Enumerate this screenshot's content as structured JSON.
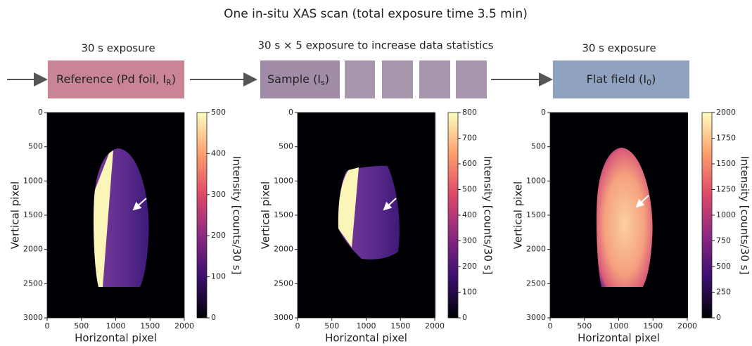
{
  "title": "One in-situ XAS scan (total exposure time 3.5 min)",
  "stages": [
    {
      "caption": "30 s exposure",
      "label": {
        "text": "Reference (Pd foil, I",
        "sub": "R",
        "tail": ")"
      }
    },
    {
      "caption": "30 s × 5 exposure to increase data statistics",
      "label": {
        "text": "Sample (I",
        "sub": "s",
        "tail": ")"
      }
    },
    {
      "caption": "30 s exposure",
      "label": {
        "text": "Flat field (I",
        "sub": "0",
        "tail": ")"
      }
    }
  ],
  "panels": [
    {
      "xlabel": "Horizontal pixel",
      "ylabel": "Vertical pixel",
      "xlim": [
        0,
        2000
      ],
      "xticks": [
        0,
        500,
        1000,
        1500,
        2000
      ],
      "ylim": [
        0,
        3000
      ],
      "yticks": [
        0,
        500,
        1000,
        1500,
        2000,
        2500,
        3000
      ],
      "colorbar": {
        "label": "Intensity [counts/30 s]",
        "lim": [
          0,
          500
        ],
        "ticks": [
          0,
          100,
          200,
          300,
          400,
          500
        ]
      }
    },
    {
      "xlabel": "Horizontal pixel",
      "ylabel": "Vertical pixel",
      "xlim": [
        0,
        2000
      ],
      "xticks": [
        0,
        500,
        1000,
        1500,
        2000
      ],
      "ylim": [
        0,
        3000
      ],
      "yticks": [
        0,
        500,
        1000,
        1500,
        2000,
        2500,
        3000
      ],
      "colorbar": {
        "label": "Intensity [counts/30 s]",
        "lim": [
          0,
          800
        ],
        "ticks": [
          0,
          100,
          200,
          300,
          400,
          500,
          600,
          700,
          800
        ]
      }
    },
    {
      "xlabel": "Horizontal pixel",
      "ylabel": "Vertical pixel",
      "xlim": [
        0,
        2000
      ],
      "xticks": [
        0,
        500,
        1000,
        1500,
        2000
      ],
      "ylim": [
        0,
        3000
      ],
      "yticks": [
        0,
        500,
        1000,
        1500,
        2000,
        2500,
        3000
      ],
      "colorbar": {
        "label": "Intensity [counts/30 s]",
        "lim": [
          0,
          2000
        ],
        "ticks": [
          0,
          250,
          500,
          750,
          1000,
          1250,
          1500,
          1750,
          2000
        ]
      }
    }
  ]
}
